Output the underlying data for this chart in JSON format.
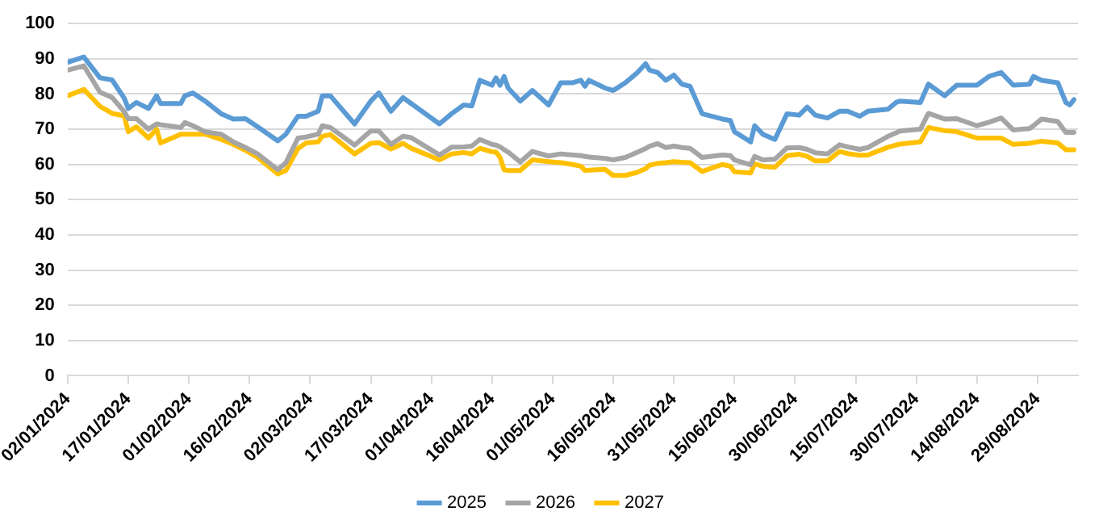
{
  "chart_data": {
    "type": "line",
    "x": [
      "2024-01-02",
      "2024-01-06",
      "2024-01-10",
      "2024-01-13",
      "2024-01-16",
      "2024-01-17",
      "2024-01-19",
      "2024-01-22",
      "2024-01-24",
      "2024-01-25",
      "2024-01-30",
      "2024-01-31",
      "2024-02-02",
      "2024-02-05",
      "2024-02-09",
      "2024-02-12",
      "2024-02-15",
      "2024-02-18",
      "2024-02-23",
      "2024-02-25",
      "2024-02-28",
      "2024-03-01",
      "2024-03-04",
      "2024-03-05",
      "2024-03-07",
      "2024-03-13",
      "2024-03-17",
      "2024-03-19",
      "2024-03-22",
      "2024-03-25",
      "2024-03-27",
      "2024-04-03",
      "2024-04-06",
      "2024-04-09",
      "2024-04-11",
      "2024-04-13",
      "2024-04-16",
      "2024-04-17",
      "2024-04-18",
      "2024-04-19",
      "2024-04-20",
      "2024-04-23",
      "2024-04-26",
      "2024-04-30",
      "2024-05-03",
      "2024-05-06",
      "2024-05-08",
      "2024-05-09",
      "2024-05-10",
      "2024-05-14",
      "2024-05-16",
      "2024-05-19",
      "2024-05-22",
      "2024-05-24",
      "2024-05-25",
      "2024-05-27",
      "2024-05-29",
      "2024-05-31",
      "2024-06-02",
      "2024-06-04",
      "2024-06-07",
      "2024-06-12",
      "2024-06-14",
      "2024-06-15",
      "2024-06-19",
      "2024-06-20",
      "2024-06-22",
      "2024-06-25",
      "2024-06-28",
      "2024-07-01",
      "2024-07-03",
      "2024-07-05",
      "2024-07-08",
      "2024-07-11",
      "2024-07-13",
      "2024-07-16",
      "2024-07-18",
      "2024-07-23",
      "2024-07-25",
      "2024-07-26",
      "2024-07-31",
      "2024-08-02",
      "2024-08-06",
      "2024-08-09",
      "2024-08-14",
      "2024-08-17",
      "2024-08-20",
      "2024-08-23",
      "2024-08-27",
      "2024-08-28",
      "2024-08-30",
      "2024-09-03",
      "2024-09-05",
      "2024-09-06",
      "2024-09-07"
    ],
    "series": [
      {
        "name": "2025",
        "color": "#5b9bd5",
        "values": [
          89,
          90.5,
          84.6,
          84,
          78.8,
          75.9,
          77.6,
          75.9,
          79.5,
          77.3,
          77.3,
          79.5,
          80.3,
          78,
          74.4,
          72.9,
          73,
          70.7,
          66.7,
          68.6,
          73.7,
          73.7,
          75.1,
          79.5,
          79.5,
          71.5,
          78,
          80.3,
          75.1,
          79,
          77.3,
          71.5,
          74.4,
          76.9,
          76.6,
          83.9,
          82.5,
          84.6,
          82.5,
          85,
          81.7,
          78,
          81,
          76.9,
          83.2,
          83.2,
          83.9,
          82.2,
          83.9,
          81.7,
          81,
          83.2,
          86.1,
          88.6,
          86.8,
          86.1,
          83.9,
          85.4,
          82.8,
          82.2,
          74.4,
          72.9,
          72.5,
          69.3,
          66.4,
          71,
          68.6,
          67.1,
          74.4,
          74,
          76.3,
          74,
          73.2,
          75.1,
          75.1,
          73.7,
          75.1,
          75.7,
          77.6,
          78,
          77.6,
          82.8,
          79.5,
          82.5,
          82.5,
          85,
          86.1,
          82.5,
          82.8,
          85,
          83.9,
          83.2,
          77.6,
          76.9,
          78.4
        ]
      },
      {
        "name": "2026",
        "color": "#a5a5a5",
        "values": [
          86.8,
          88,
          80.5,
          79,
          75,
          73,
          73,
          70,
          71.5,
          71.3,
          70.5,
          71.9,
          71,
          69.3,
          68.6,
          66.4,
          64.8,
          63,
          58.5,
          60.5,
          67.5,
          67.8,
          68.6,
          71,
          70.5,
          65.5,
          69.5,
          69.5,
          65.7,
          68,
          67.6,
          62.7,
          64.9,
          65,
          65.2,
          67.1,
          65.7,
          65.5,
          65,
          64.2,
          63.5,
          60.7,
          63.7,
          62.4,
          63,
          62.7,
          62.5,
          62.3,
          62.1,
          61.7,
          61.3,
          62,
          63.5,
          64.5,
          65.2,
          65.9,
          64.8,
          65.2,
          64.8,
          64.6,
          62,
          62.7,
          62.5,
          61.3,
          59.9,
          62.3,
          61.3,
          61.5,
          64.7,
          64.8,
          64.3,
          63.3,
          63,
          65.6,
          65,
          64.3,
          64.8,
          68,
          69,
          69.5,
          70,
          74.5,
          72.9,
          73,
          71,
          72,
          73.2,
          69.8,
          70.2,
          71,
          72.9,
          72.2,
          69.1,
          69.1,
          69.1
        ]
      },
      {
        "name": "2027",
        "color": "#ffc000",
        "values": [
          79.5,
          81.3,
          76.5,
          74.5,
          73.8,
          69.3,
          70.7,
          67.5,
          70,
          66.1,
          68.6,
          68.6,
          68.6,
          68.6,
          67.1,
          65.7,
          64,
          62,
          57.3,
          58.3,
          64.5,
          66.1,
          66.4,
          68,
          68.5,
          63,
          66,
          66.2,
          64.4,
          66,
          64.6,
          61.3,
          63,
          63.4,
          63,
          64.6,
          63.6,
          63.5,
          62,
          58.5,
          58.3,
          58.3,
          61.3,
          60.8,
          60.5,
          60,
          59.5,
          58.3,
          58.4,
          58.6,
          56.9,
          56.9,
          57.8,
          58.8,
          59.8,
          60.3,
          60.5,
          60.8,
          60.6,
          60.5,
          58,
          60,
          59.5,
          57.9,
          57.6,
          60.2,
          59.5,
          59.2,
          62.5,
          62.9,
          62.3,
          61,
          61,
          63.7,
          63.1,
          62.6,
          62.7,
          64.9,
          65.5,
          65.8,
          66.4,
          70.5,
          69.6,
          69.3,
          67.5,
          67.5,
          67.5,
          65.7,
          66,
          66.2,
          66.6,
          66.1,
          64.2,
          64.2,
          64.2
        ]
      }
    ],
    "xlim": [
      "2024-01-02",
      "2024-09-08"
    ],
    "xticks": [
      {
        "value": "2024-01-02",
        "label": "02/01/2024"
      },
      {
        "value": "2024-01-17",
        "label": "17/01/2024"
      },
      {
        "value": "2024-02-01",
        "label": "01/02/2024"
      },
      {
        "value": "2024-02-16",
        "label": "16/02/2024"
      },
      {
        "value": "2024-03-02",
        "label": "02/03/2024"
      },
      {
        "value": "2024-03-17",
        "label": "17/03/2024"
      },
      {
        "value": "2024-04-01",
        "label": "01/04/2024"
      },
      {
        "value": "2024-04-16",
        "label": "16/04/2024"
      },
      {
        "value": "2024-05-01",
        "label": "01/05/2024"
      },
      {
        "value": "2024-05-16",
        "label": "16/05/2024"
      },
      {
        "value": "2024-05-31",
        "label": "31/05/2024"
      },
      {
        "value": "2024-06-15",
        "label": "15/06/2024"
      },
      {
        "value": "2024-06-30",
        "label": "30/06/2024"
      },
      {
        "value": "2024-07-15",
        "label": "15/07/2024"
      },
      {
        "value": "2024-07-30",
        "label": "30/07/2024"
      },
      {
        "value": "2024-08-14",
        "label": "14/08/2024"
      },
      {
        "value": "2024-08-29",
        "label": "29/08/2024"
      }
    ],
    "ylim": [
      0,
      100
    ],
    "yticks": [
      0,
      10,
      20,
      30,
      40,
      50,
      60,
      70,
      80,
      90,
      100
    ],
    "grid": "y",
    "legend": "bottom",
    "marker": "none",
    "line_style": "solid"
  }
}
